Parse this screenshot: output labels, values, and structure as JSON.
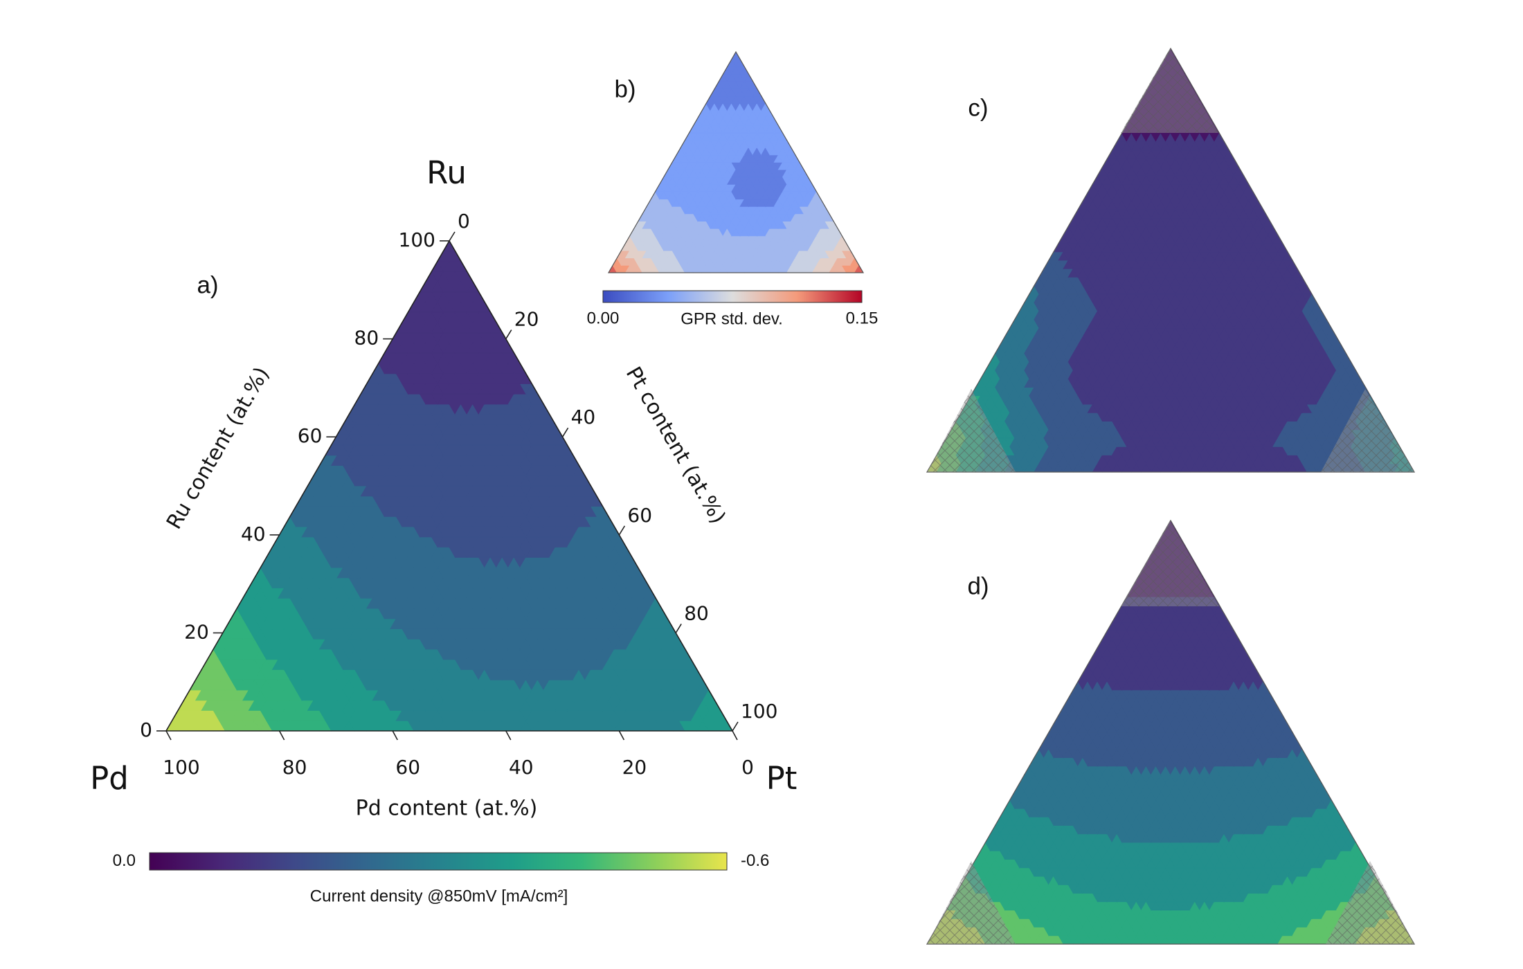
{
  "chart_data": [
    {
      "type": "ternary",
      "panel_label": "a)",
      "vertices": [
        "Pd",
        "Pt",
        "Ru"
      ],
      "ru_axis": {
        "label": "Ru content (at.%)",
        "ticks": [
          0,
          20,
          40,
          60,
          80,
          100
        ]
      },
      "pd_axis": {
        "label": "Pd content (at.%)",
        "ticks": [
          0,
          20,
          40,
          60,
          80,
          100
        ]
      },
      "pt_axis": {
        "label": "Pt content (at.%)",
        "ticks": [
          0,
          20,
          40,
          60,
          80,
          100
        ]
      },
      "colormap": "viridis",
      "colorbar_label": "Current density @850mV [mA/cm²]",
      "clim": [
        0,
        -0.6
      ],
      "cticks": [
        {
          "value": 0,
          "label": "0.0"
        },
        -0.6
      ]
    },
    {
      "type": "ternary",
      "panel_label": "b)",
      "colormap": "coolwarm",
      "colorbar_label": "GPR std. dev.",
      "clim": [
        0,
        0.15
      ],
      "cticks": [
        {
          "value": 0,
          "label": "0.00"
        },
        0.15
      ]
    },
    {
      "type": "ternary",
      "panel_label": "c)",
      "colormap": "viridis"
    },
    {
      "type": "ternary",
      "panel_label": "d)",
      "colormap": "viridis"
    }
  ]
}
